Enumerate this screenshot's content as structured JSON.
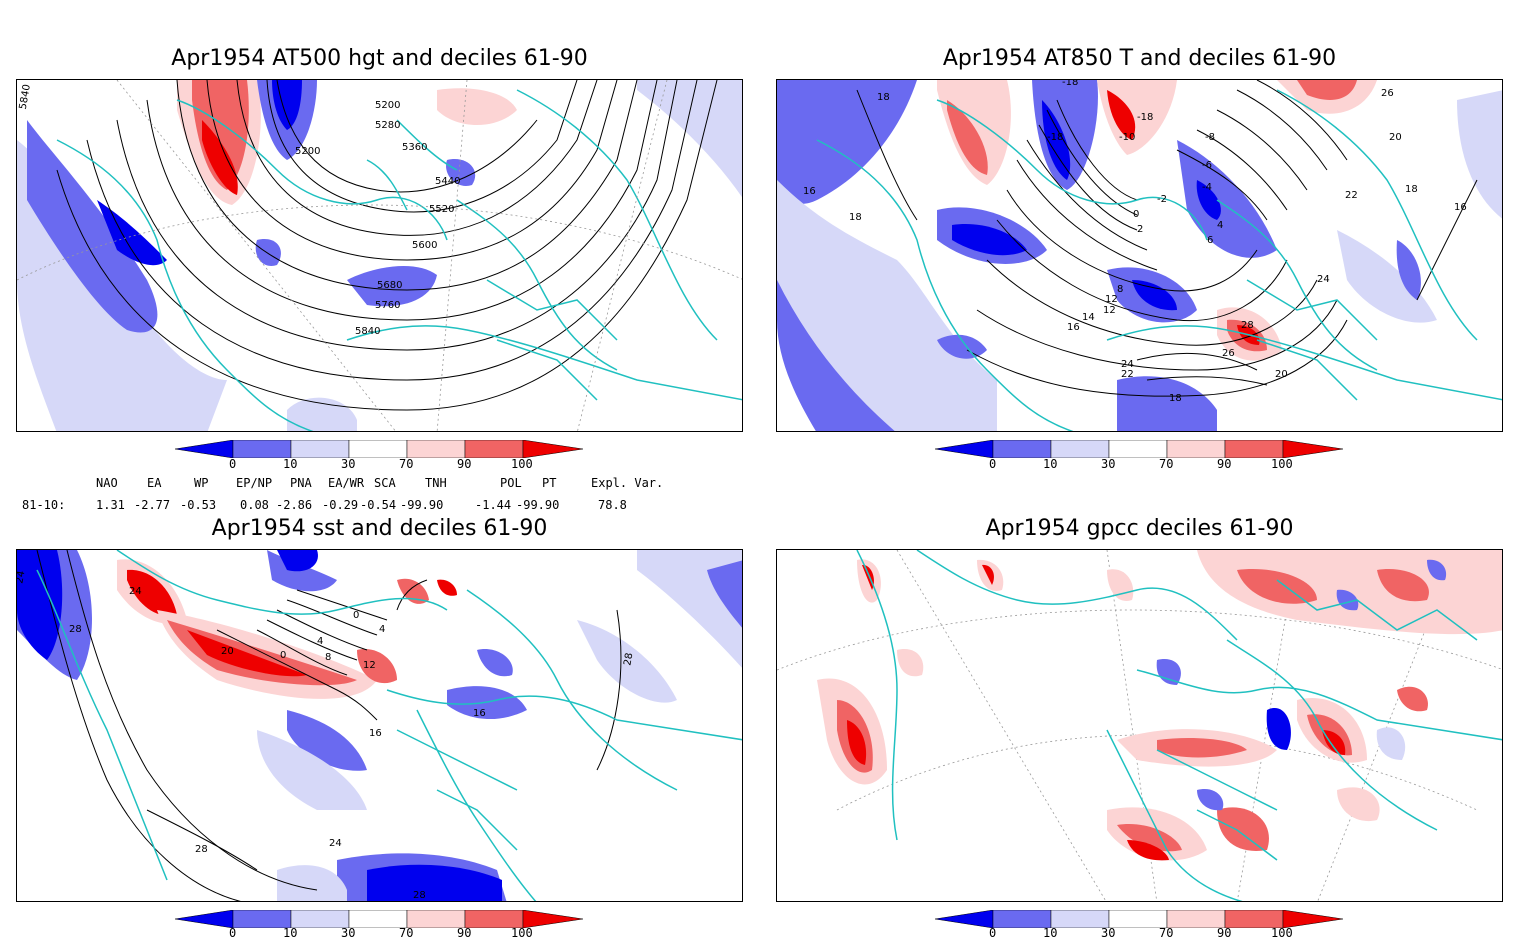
{
  "panels": [
    {
      "title": "Apr1954 AT500 hgt and deciles 61-90",
      "contours": [
        "5840",
        "5200",
        "5280",
        "5360",
        "5200",
        "5440",
        "5520",
        "5600",
        "5680",
        "5760",
        "5840"
      ]
    },
    {
      "title": "Apr1954 AT850 T and deciles 61-90",
      "contours": [
        "18",
        "16",
        "18",
        "-18",
        "-18",
        "-10",
        "-8",
        "-6",
        "-4",
        "-2",
        "0",
        "2",
        "4",
        "6",
        "8",
        "12",
        "12",
        "14",
        "16",
        "22",
        "24",
        "20",
        "18",
        "16",
        "28",
        "26",
        "24",
        "22",
        "20",
        "18",
        "-18",
        "26"
      ]
    },
    {
      "title": "Apr1954 sst and deciles 61-90",
      "contours": [
        "24",
        "28",
        "24",
        "20",
        "0",
        "4",
        "8",
        "12",
        "16",
        "4",
        "0",
        "16",
        "24",
        "28",
        "28",
        "28"
      ]
    },
    {
      "title": "Apr1954 gpcc deciles 61-90",
      "contours": []
    }
  ],
  "colorbar": {
    "labels": [
      "0",
      "10",
      "30",
      "70",
      "90",
      "100"
    ],
    "colors": [
      "#0000ee",
      "#6a6af0",
      "#d6d8f8",
      "#ffffff",
      "#fcd4d4",
      "#f06464",
      "#ee0000"
    ]
  },
  "indices": {
    "headers": [
      "NAO",
      "EA",
      "WP",
      "EP/NP",
      "PNA",
      "EA/WR",
      "SCA",
      "TNH",
      "POL",
      "PT",
      "Expl. Var."
    ],
    "row_label": "81-10:",
    "values": [
      "1.31",
      "-2.77",
      "-0.53",
      "0.08",
      "-2.86",
      "-0.29",
      "-0.54",
      "-99.90",
      "-1.44",
      "-99.90",
      "78.8"
    ]
  },
  "palette": {
    "coast": "#20c0c0",
    "contour": "#000000",
    "grid": "#999999"
  }
}
